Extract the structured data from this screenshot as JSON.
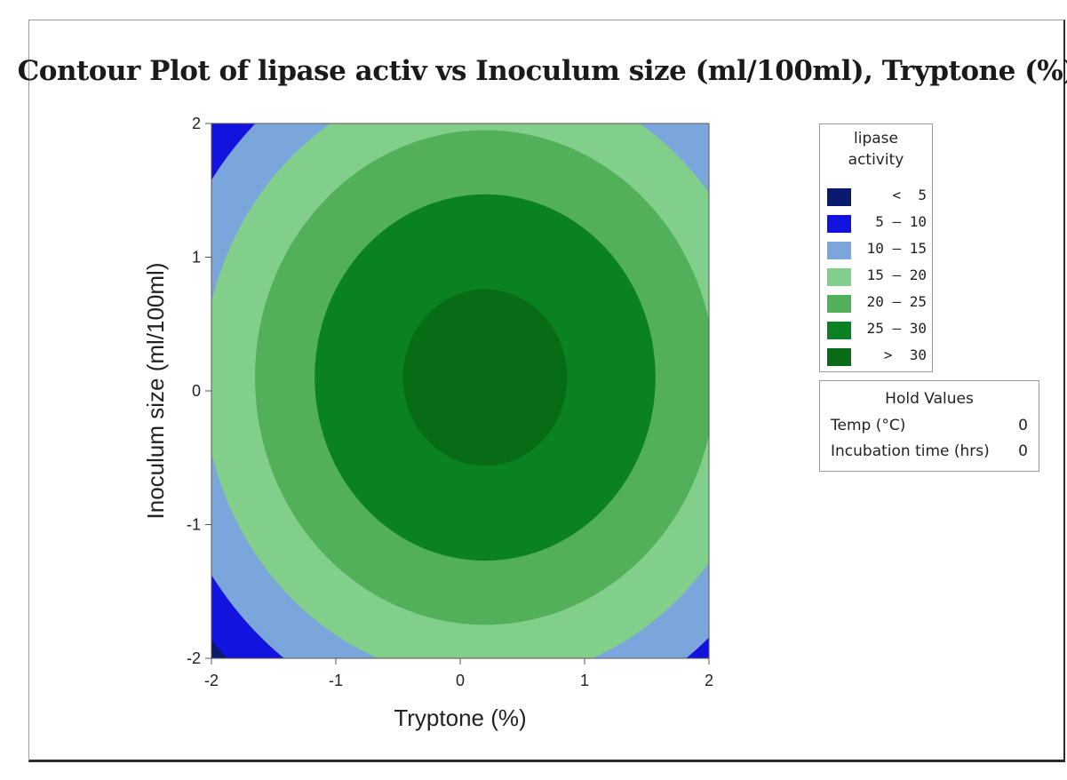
{
  "colors": {
    "frame_border": "#2a2a2a",
    "axis": "#555555",
    "levels": [
      "#0a1a6e",
      "#1313e0",
      "#7ba6dc",
      "#82cf8c",
      "#52b05a",
      "#0a8222",
      "#086b16"
    ]
  },
  "chart_data": {
    "type": "contour",
    "title": "Contour Plot of lipase activ vs Inoculum size (ml/100ml), Tryptone (%)",
    "xlabel": "Tryptone (%)",
    "ylabel": "Inoculum size (ml/100ml)",
    "xlim": [
      -2,
      2
    ],
    "ylim": [
      -2,
      2
    ],
    "xticks": [
      "-2",
      "-1",
      "0",
      "1",
      "2"
    ],
    "yticks": [
      "-2",
      "-1",
      "0",
      "1",
      "2"
    ],
    "center": {
      "x": 0.2,
      "y": 0.1
    },
    "contour_radii": [
      {
        "level": 30,
        "radius": 0.66
      },
      {
        "level": 25,
        "radius": 1.37
      },
      {
        "level": 20,
        "radius": 1.85
      },
      {
        "level": 15,
        "radius": 2.27
      },
      {
        "level": 10,
        "radius": 2.65
      },
      {
        "level": 5,
        "radius": 2.95
      }
    ],
    "legend": {
      "title": [
        "lipase",
        "activity"
      ],
      "placement": "right",
      "entries": [
        {
          "label": "<  5",
          "color": "#0a1a6e"
        },
        {
          "label": "5 – 10",
          "color": "#1313e0"
        },
        {
          "label": "10 – 15",
          "color": "#7ba6dc"
        },
        {
          "label": "15 – 20",
          "color": "#82cf8c"
        },
        {
          "label": "20 – 25",
          "color": "#52b05a"
        },
        {
          "label": "25 – 30",
          "color": "#0a8222"
        },
        {
          "label": ">  30",
          "color": "#086b16"
        }
      ]
    },
    "hold_values": {
      "title": "Hold Values",
      "rows": [
        {
          "label": "Temp (°C)",
          "value": "0"
        },
        {
          "label": "Incubation time (hrs)",
          "value": "0"
        }
      ]
    }
  }
}
